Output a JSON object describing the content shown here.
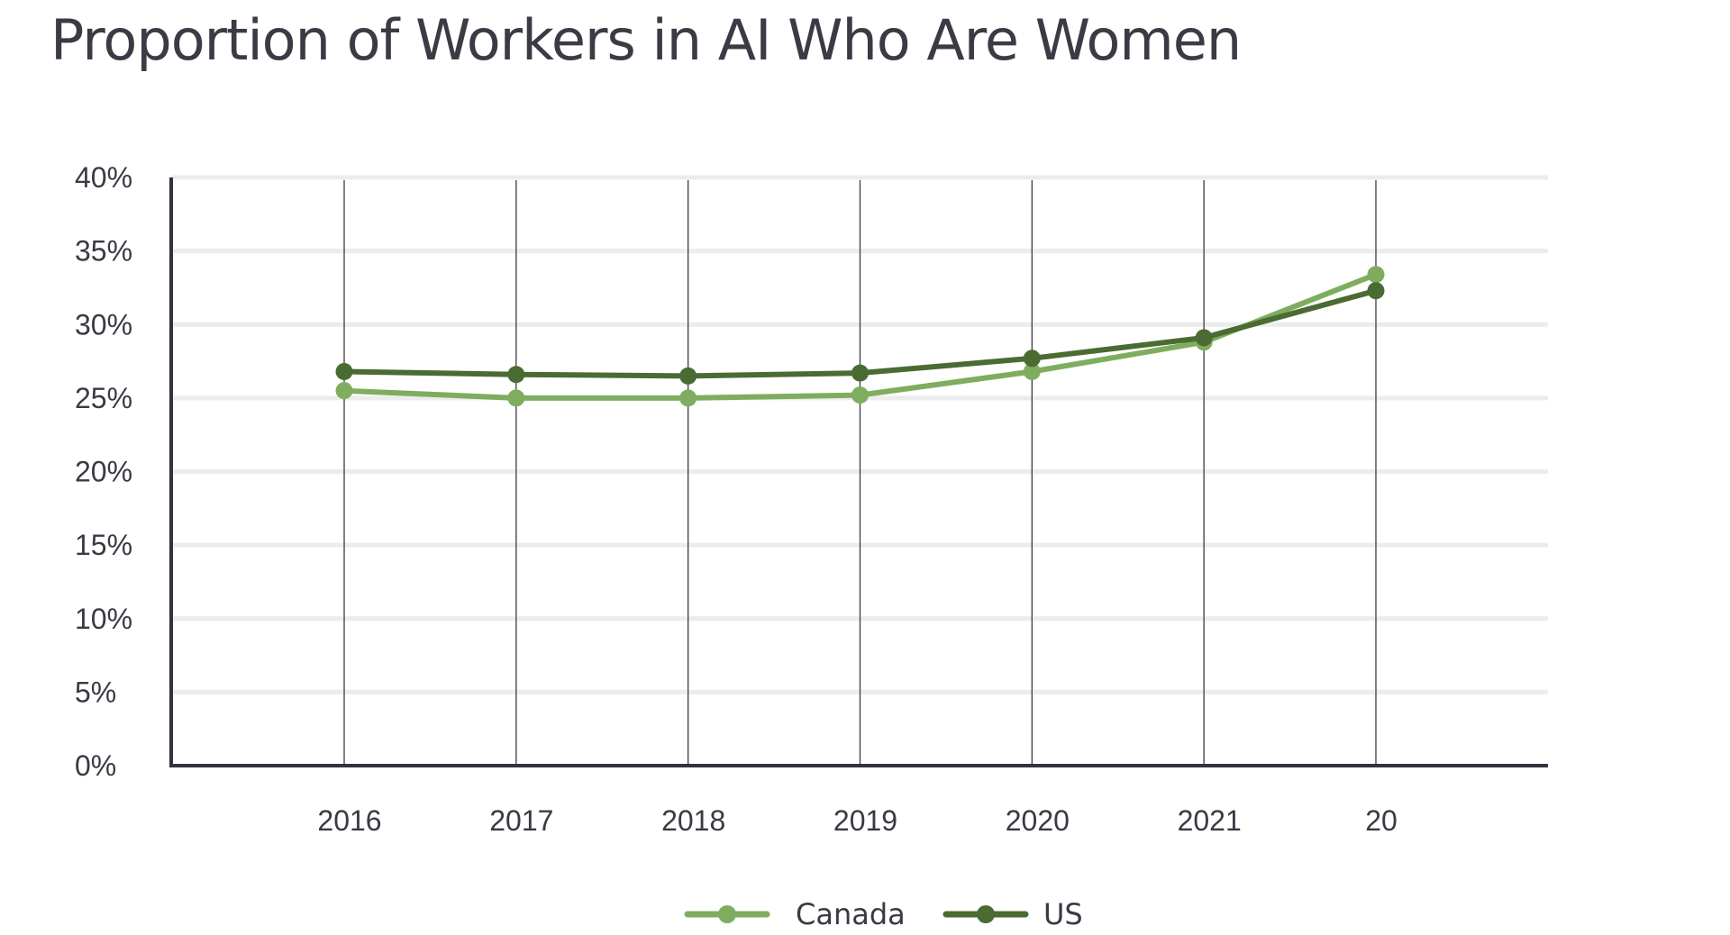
{
  "chart_data": {
    "type": "line",
    "title": "Proportion of Workers in AI Who Are Women",
    "xlabel": "",
    "ylabel": "",
    "categories": [
      "2016",
      "2017",
      "2018",
      "2019",
      "2020",
      "2021",
      "20"
    ],
    "y_ticks": [
      "0%",
      "5%",
      "10%",
      "15%",
      "20%",
      "25%",
      "30%",
      "35%",
      "40%"
    ],
    "ylim": [
      0,
      40
    ],
    "grid": true,
    "legend_position": "bottom",
    "series": [
      {
        "name": "Canada",
        "color": "#7fad5f",
        "values": [
          25.5,
          25.0,
          25.0,
          25.2,
          26.8,
          28.8,
          33.4
        ]
      },
      {
        "name": "US",
        "color": "#4a6b32",
        "values": [
          26.8,
          26.6,
          26.5,
          26.7,
          27.7,
          29.1,
          32.3
        ]
      }
    ]
  }
}
